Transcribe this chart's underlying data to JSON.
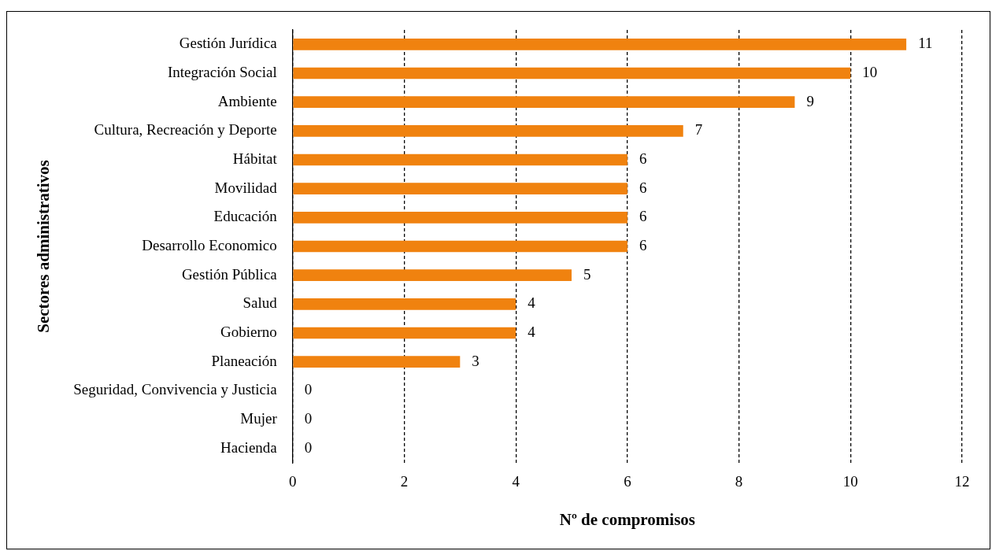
{
  "chart_data": {
    "type": "bar",
    "orientation": "horizontal",
    "xlabel": "Nº de compromisos",
    "ylabel": "Sectores administrativos",
    "categories": [
      "Gestión Jurídica",
      "Integración Social",
      "Ambiente",
      "Cultura, Recreación y Deporte",
      "Hábitat",
      "Movilidad",
      "Educación",
      "Desarrollo Economico",
      "Gestión Pública",
      "Salud",
      "Gobierno",
      "Planeación",
      "Seguridad, Convivencia y Justicia",
      "Mujer",
      "Hacienda"
    ],
    "values": [
      11,
      10,
      9,
      7,
      6,
      6,
      6,
      6,
      5,
      4,
      4,
      3,
      0,
      0,
      0
    ],
    "color": "#f0820f",
    "xlim": [
      0,
      12
    ],
    "xticks": [
      0,
      2,
      4,
      6,
      8,
      10,
      12
    ],
    "grid": "x",
    "line_style": "dashed",
    "data_labels": true
  }
}
